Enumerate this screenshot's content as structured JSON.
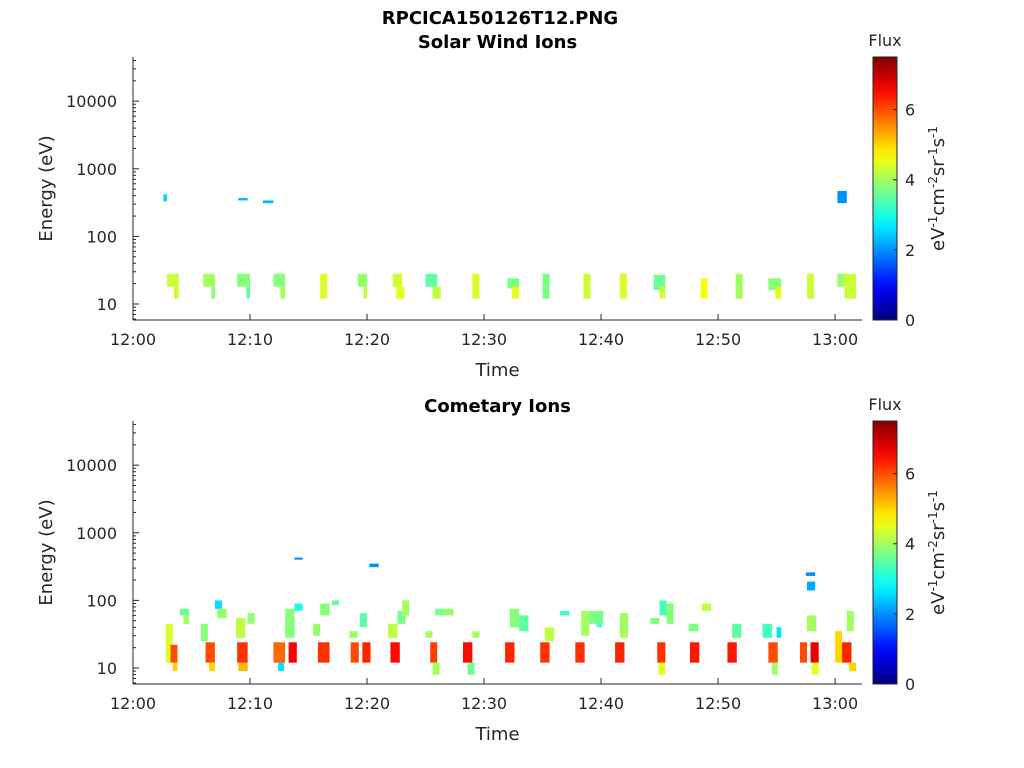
{
  "figure_title": "RPCICA150126T12.PNG",
  "chart_data": [
    {
      "type": "heatmap",
      "title": "Solar Wind Ions",
      "xlabel": "Time",
      "ylabel": "Energy (eV)",
      "x_ticks": [
        "12:00",
        "12:10",
        "12:20",
        "12:30",
        "12:40",
        "12:50",
        "13:00"
      ],
      "x_range_minutes": [
        0,
        62.3
      ],
      "y_scale": "log",
      "y_range": [
        5.8,
        45000
      ],
      "y_ticks": [
        10,
        100,
        1000,
        10000
      ],
      "y_tick_labels": [
        "10",
        "100",
        "1000",
        "10000"
      ],
      "colorbar": {
        "label": "Flux",
        "units": "eV-1cm-2sr-1s-1",
        "range": [
          0,
          7.5
        ],
        "ticks": [
          "0",
          "2",
          "4",
          "6"
        ]
      },
      "cells": [
        [
          2.6,
          2.9,
          330,
          420,
          2.5
        ],
        [
          9.0,
          9.8,
          340,
          370,
          2.3
        ],
        [
          11.1,
          12.0,
          310,
          340,
          2.3
        ],
        [
          60.2,
          61.0,
          310,
          470,
          2.0
        ],
        [
          2.9,
          3.9,
          18,
          28,
          4.3
        ],
        [
          3.5,
          3.9,
          12,
          18,
          4.3
        ],
        [
          6.0,
          7.0,
          18,
          28,
          4.0
        ],
        [
          6.7,
          7.0,
          12,
          18,
          3.8
        ],
        [
          8.9,
          10.0,
          18,
          28,
          3.8
        ],
        [
          9.7,
          10.0,
          12,
          18,
          3.5
        ],
        [
          12.0,
          13.0,
          18,
          28,
          3.8
        ],
        [
          12.6,
          13.0,
          12,
          18,
          4.0
        ],
        [
          16.0,
          16.6,
          12,
          28,
          4.4
        ],
        [
          19.2,
          20.0,
          18,
          28,
          3.9
        ],
        [
          19.7,
          20.0,
          12,
          18,
          4.2
        ],
        [
          22.2,
          23.0,
          18,
          28,
          4.3
        ],
        [
          22.5,
          23.2,
          12,
          18,
          4.5
        ],
        [
          25.0,
          26.0,
          18,
          28,
          3.5
        ],
        [
          25.6,
          26.3,
          12,
          18,
          4.2
        ],
        [
          29.0,
          29.6,
          12,
          28,
          4.4
        ],
        [
          32.0,
          33.0,
          17,
          24,
          3.7
        ],
        [
          32.4,
          33.0,
          12,
          18,
          4.5
        ],
        [
          35.0,
          35.6,
          12,
          28,
          3.7
        ],
        [
          38.5,
          39.1,
          12,
          28,
          4.3
        ],
        [
          41.6,
          42.2,
          12,
          28,
          4.4
        ],
        [
          44.5,
          45.5,
          16,
          27,
          3.6
        ],
        [
          45.0,
          45.5,
          12,
          18,
          4.3
        ],
        [
          48.5,
          49.1,
          12,
          24,
          4.6
        ],
        [
          51.5,
          52.1,
          12,
          28,
          4.0
        ],
        [
          54.3,
          55.4,
          16,
          24,
          3.8
        ],
        [
          54.9,
          55.4,
          12,
          18,
          4.5
        ],
        [
          57.6,
          58.2,
          12,
          28,
          4.3
        ],
        [
          60.2,
          61.2,
          18,
          28,
          3.9
        ],
        [
          60.8,
          61.8,
          12,
          28,
          4.3
        ]
      ]
    },
    {
      "type": "heatmap",
      "title": "Cometary Ions",
      "xlabel": "Time",
      "ylabel": "Energy (eV)",
      "x_ticks": [
        "12:00",
        "12:10",
        "12:20",
        "12:30",
        "12:40",
        "12:50",
        "13:00"
      ],
      "x_range_minutes": [
        0,
        62.3
      ],
      "y_scale": "log",
      "y_range": [
        5.8,
        45000
      ],
      "y_ticks": [
        10,
        100,
        1000,
        10000
      ],
      "y_tick_labels": [
        "10",
        "100",
        "1000",
        "10000"
      ],
      "colorbar": {
        "label": "Flux",
        "units": "eV-1cm-2sr-1s-1",
        "range": [
          0,
          7.5
        ],
        "ticks": [
          "0",
          "2",
          "4",
          "6"
        ]
      },
      "cells": [
        [
          13.8,
          14.5,
          400,
          430,
          2.0
        ],
        [
          20.2,
          21.0,
          310,
          350,
          2.0
        ],
        [
          57.5,
          58.3,
          230,
          260,
          2.0
        ],
        [
          57.6,
          58.3,
          140,
          190,
          2.2
        ],
        [
          2.8,
          3.4,
          12,
          45,
          4.4
        ],
        [
          3.2,
          3.8,
          12,
          22,
          6.0
        ],
        [
          3.4,
          3.8,
          9,
          12,
          5.0
        ],
        [
          4.0,
          4.8,
          60,
          75,
          3.6
        ],
        [
          4.3,
          4.8,
          45,
          60,
          4.0
        ],
        [
          5.8,
          6.4,
          25,
          45,
          3.8
        ],
        [
          6.2,
          7.0,
          12,
          24,
          6.0
        ],
        [
          6.5,
          7.0,
          9,
          12,
          5.0
        ],
        [
          7.0,
          7.6,
          75,
          100,
          2.6
        ],
        [
          7.2,
          8.0,
          55,
          75,
          3.9
        ],
        [
          8.8,
          9.6,
          28,
          55,
          4.2
        ],
        [
          8.9,
          9.8,
          12,
          24,
          6.2
        ],
        [
          9.0,
          9.8,
          9,
          12,
          5.2
        ],
        [
          9.8,
          10.4,
          45,
          65,
          3.9
        ],
        [
          12.0,
          13.0,
          12,
          24,
          5.8
        ],
        [
          12.4,
          12.9,
          9,
          12,
          2.6
        ],
        [
          13.0,
          13.8,
          28,
          75,
          3.8
        ],
        [
          13.3,
          14.0,
          12,
          24,
          6.6
        ],
        [
          13.8,
          14.5,
          70,
          90,
          3.0
        ],
        [
          15.4,
          16.0,
          30,
          45,
          3.9
        ],
        [
          15.8,
          16.8,
          12,
          24,
          6.2
        ],
        [
          16.0,
          16.8,
          60,
          90,
          3.8
        ],
        [
          17.0,
          17.6,
          85,
          100,
          3.5
        ],
        [
          18.5,
          19.2,
          28,
          35,
          3.9
        ],
        [
          18.6,
          19.3,
          12,
          24,
          6.0
        ],
        [
          19.4,
          20.0,
          40,
          65,
          3.5
        ],
        [
          19.6,
          20.3,
          12,
          24,
          6.3
        ],
        [
          21.8,
          22.6,
          28,
          45,
          4.2
        ],
        [
          22.0,
          22.8,
          12,
          24,
          6.5
        ],
        [
          22.6,
          23.3,
          45,
          70,
          3.7
        ],
        [
          23.0,
          23.6,
          60,
          100,
          4.0
        ],
        [
          25.0,
          25.6,
          28,
          35,
          4.0
        ],
        [
          25.4,
          26.0,
          12,
          24,
          6.1
        ],
        [
          25.6,
          26.2,
          8,
          12,
          4.0
        ],
        [
          25.8,
          26.6,
          60,
          75,
          3.7
        ],
        [
          26.6,
          27.4,
          60,
          75,
          3.9
        ],
        [
          28.2,
          29.0,
          12,
          24,
          6.5
        ],
        [
          28.6,
          29.2,
          8,
          12,
          3.6
        ],
        [
          29.0,
          29.6,
          28,
          35,
          4.0
        ],
        [
          31.8,
          32.6,
          12,
          24,
          6.3
        ],
        [
          32.2,
          33.0,
          40,
          75,
          3.8
        ],
        [
          33.0,
          33.8,
          35,
          60,
          3.5
        ],
        [
          34.8,
          35.6,
          12,
          24,
          6.2
        ],
        [
          35.2,
          36.0,
          25,
          40,
          4.2
        ],
        [
          36.5,
          37.3,
          60,
          70,
          3.2
        ],
        [
          37.8,
          38.6,
          12,
          24,
          6.2
        ],
        [
          38.3,
          39.0,
          30,
          70,
          4.0
        ],
        [
          39.0,
          40.2,
          45,
          70,
          3.7
        ],
        [
          39.6,
          40.1,
          40,
          50,
          3.4
        ],
        [
          41.2,
          42.0,
          12,
          24,
          6.3
        ],
        [
          41.6,
          42.3,
          28,
          65,
          4.0
        ],
        [
          44.2,
          45.0,
          45,
          55,
          3.8
        ],
        [
          44.8,
          45.5,
          12,
          24,
          6.2
        ],
        [
          44.9,
          45.5,
          8,
          12,
          4.5
        ],
        [
          45.0,
          45.6,
          60,
          100,
          3.3
        ],
        [
          45.6,
          46.2,
          45,
          90,
          3.8
        ],
        [
          47.5,
          48.3,
          35,
          45,
          3.7
        ],
        [
          47.6,
          48.4,
          12,
          24,
          6.4
        ],
        [
          48.6,
          49.4,
          70,
          90,
          4.2
        ],
        [
          50.8,
          51.6,
          12,
          24,
          6.4
        ],
        [
          51.2,
          52.0,
          28,
          45,
          3.5
        ],
        [
          53.8,
          54.6,
          28,
          45,
          3.3
        ],
        [
          54.3,
          55.1,
          12,
          24,
          6.0
        ],
        [
          54.6,
          55.1,
          8,
          12,
          4.0
        ],
        [
          55.0,
          55.4,
          28,
          40,
          2.6
        ],
        [
          57.0,
          57.6,
          12,
          24,
          6.0
        ],
        [
          57.6,
          58.4,
          35,
          60,
          4.0
        ],
        [
          57.9,
          58.6,
          12,
          24,
          6.7
        ],
        [
          58.0,
          58.6,
          8,
          12,
          4.5
        ],
        [
          60.0,
          60.6,
          12,
          35,
          5.0
        ],
        [
          60.6,
          61.4,
          12,
          24,
          6.3
        ],
        [
          61.0,
          61.6,
          35,
          70,
          4.0
        ],
        [
          61.2,
          61.8,
          9,
          12,
          5.0
        ]
      ]
    }
  ]
}
